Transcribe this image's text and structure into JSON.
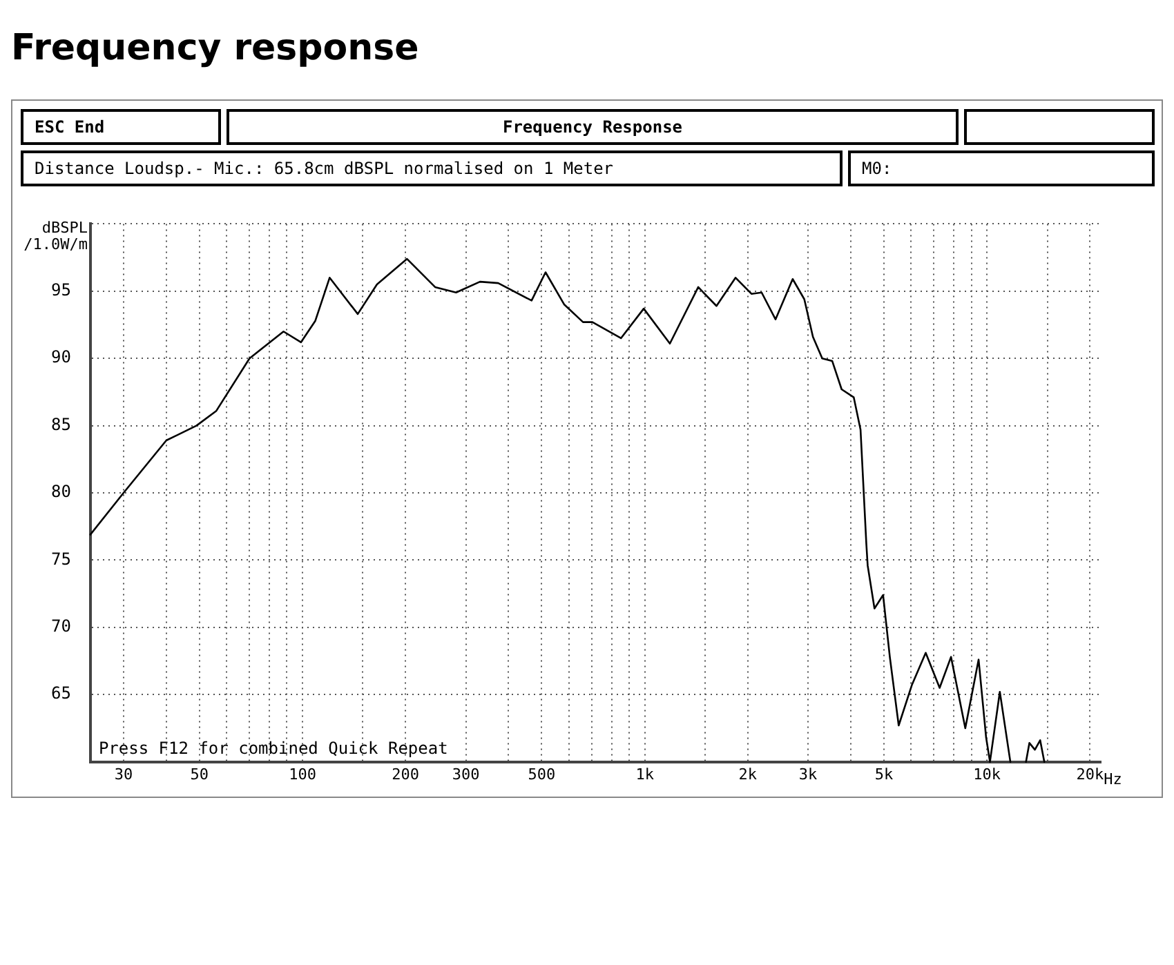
{
  "chart_data": {
    "type": "line",
    "title": "Frequency response",
    "subtitle": "Frequency Response",
    "ylabel": "dBSPL /1.0W/m",
    "annotations": [
      "ESC End",
      "Distance Loudsp.- Mic.: 65.8cm dBSPL normalised on 1 Meter",
      "M0:",
      "Press F12 for combined Quick Repeat"
    ],
    "log": "x",
    "grid": true,
    "marker": "none",
    "line_style": "solid",
    "xlim": [
      24,
      21500
    ],
    "ylim": [
      60,
      100
    ],
    "xticks": [
      30,
      {
        "value": 40,
        "label": null
      },
      50,
      {
        "value": 60,
        "label": null
      },
      {
        "value": 70,
        "label": null
      },
      {
        "value": 80,
        "label": null
      },
      {
        "value": 90,
        "label": null
      },
      100,
      {
        "value": 150,
        "label": null
      },
      200,
      300,
      {
        "value": 400,
        "label": null
      },
      500,
      {
        "value": 600,
        "label": null
      },
      {
        "value": 700,
        "label": null
      },
      {
        "value": 800,
        "label": null
      },
      {
        "value": 900,
        "label": null
      },
      {
        "value": 1000,
        "label": "1k"
      },
      {
        "value": 1500,
        "label": null
      },
      {
        "value": 2000,
        "label": "2k"
      },
      {
        "value": 3000,
        "label": "3k"
      },
      {
        "value": 4000,
        "label": null
      },
      {
        "value": 5000,
        "label": "5k"
      },
      {
        "value": 6000,
        "label": null
      },
      {
        "value": 7000,
        "label": null
      },
      {
        "value": 8000,
        "label": null
      },
      {
        "value": 9000,
        "label": null
      },
      {
        "value": 10000,
        "label": "10k"
      },
      {
        "value": 15000,
        "label": null
      },
      {
        "value": 20000,
        "label": "20k"
      }
    ],
    "xlabel": "Hz",
    "yticks": [
      {
        "value": 60,
        "label": null
      },
      65,
      70,
      75,
      80,
      85,
      90,
      95,
      {
        "value": 100,
        "label": null
      }
    ],
    "x": [
      24,
      30,
      40,
      49,
      56,
      70,
      88,
      99,
      109,
      120,
      145,
      165,
      202,
      244,
      281,
      330,
      373,
      467,
      513,
      582,
      660,
      703,
      852,
      993,
      1184,
      1433,
      1620,
      1842,
      2050,
      2195,
      2410,
      2705,
      2925,
      3100,
      3300,
      3530,
      3760,
      4080,
      4270,
      4440,
      4480,
      4690,
      4970,
      5200,
      5520,
      6030,
      6620,
      7270,
      7850,
      8640,
      9450,
      9940,
      10200,
      10900,
      11700
    ],
    "series": [
      {
        "color": "#000000",
        "values": [
          76.9,
          80.0,
          83.9,
          85.0,
          86.1,
          90.0,
          92.0,
          91.2,
          92.8,
          96.0,
          93.3,
          95.5,
          97.4,
          95.3,
          94.9,
          95.7,
          95.6,
          94.3,
          96.4,
          94.0,
          92.7,
          92.7,
          91.5,
          93.7,
          91.1,
          95.3,
          93.9,
          96.0,
          94.8,
          94.9,
          92.9,
          95.9,
          94.4,
          91.6,
          90.0,
          89.8,
          87.7,
          87.1,
          84.7,
          76.2,
          74.6,
          71.4,
          72.4,
          67.8,
          62.7,
          65.7,
          68.1,
          65.5,
          67.8,
          62.5,
          67.6,
          61.8,
          60,
          65.2,
          60
        ]
      },
      {
        "color": "#000000",
        "x": [
          13000,
          13300,
          13800,
          14300,
          14700
        ],
        "values": [
          60,
          61.4,
          60.9,
          61.6,
          60
        ]
      }
    ]
  }
}
